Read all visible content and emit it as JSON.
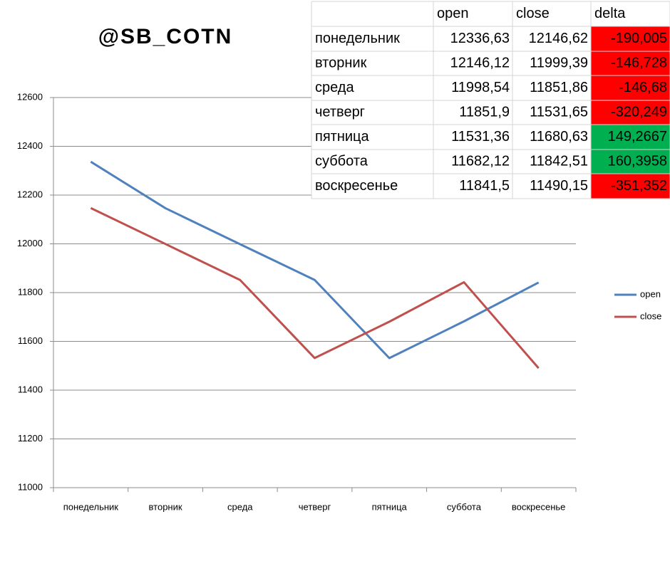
{
  "watermark": "@SB_COTN",
  "table": {
    "header": [
      "open",
      "close",
      "delta"
    ],
    "rows": [
      [
        "понедельник",
        "12336,63",
        "12146,62",
        "-190,005"
      ],
      [
        "вторник",
        "12146,12",
        "11999,39",
        "-146,728"
      ],
      [
        "среда",
        "11998,54",
        "11851,86",
        "-146,68"
      ],
      [
        "четверг",
        "11851,9",
        "11531,65",
        "-320,249"
      ],
      [
        "пятница",
        "11531,36",
        "11680,63",
        "149,2667"
      ],
      [
        "суббота",
        "11682,12",
        "11842,51",
        "160,3958"
      ],
      [
        "воскресенье",
        "11841,5",
        "11490,15",
        "-351,352"
      ]
    ],
    "delta_colors": [
      "#ff0000",
      "#ff0000",
      "#ff0000",
      "#ff0000",
      "#00b050",
      "#00b050",
      "#ff0000"
    ]
  },
  "chart_data": {
    "type": "line",
    "categories": [
      "понедельник",
      "вторник",
      "среда",
      "четверг",
      "пятница",
      "суббота",
      "воскресенье"
    ],
    "series": [
      {
        "name": "open",
        "color": "#4f81bd",
        "values": [
          12336.63,
          12146.12,
          11998.54,
          11851.9,
          11531.36,
          11682.12,
          11841.5
        ]
      },
      {
        "name": "close",
        "color": "#c0504d",
        "values": [
          12146.62,
          11999.39,
          11851.86,
          11531.65,
          11680.63,
          11842.51,
          11490.15
        ]
      }
    ],
    "ylim": [
      11000,
      12600
    ],
    "yticks": [
      11000,
      11200,
      11400,
      11600,
      11800,
      12000,
      12200,
      12400,
      12600
    ],
    "grid": true,
    "legend": "right"
  }
}
